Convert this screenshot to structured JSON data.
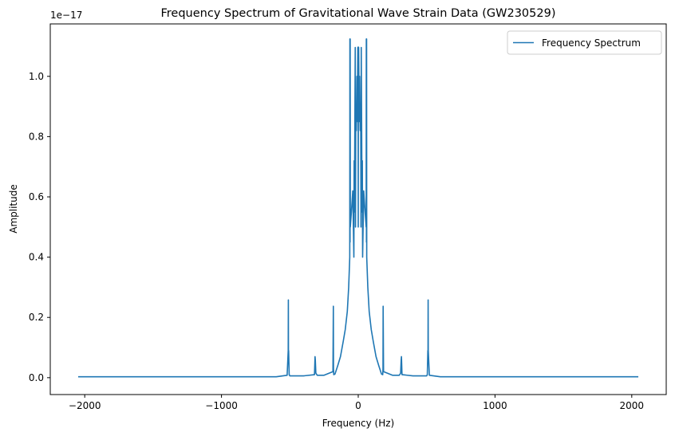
{
  "chart_data": {
    "type": "line",
    "title": "Frequency Spectrum of Gravitational Wave Strain Data (GW230529)",
    "xlabel": "Frequency (Hz)",
    "ylabel": "Amplitude",
    "y_offset_label": "1e−17",
    "xlim": [
      -2252,
      2252
    ],
    "ylim": [
      -0.056,
      1.174
    ],
    "x_ticks": [
      -2000,
      -1000,
      0,
      1000,
      2000
    ],
    "x_tick_labels": [
      "−2000",
      "−1000",
      "0",
      "1000",
      "2000"
    ],
    "y_ticks": [
      0.0,
      0.2,
      0.4,
      0.6,
      0.8,
      1.0
    ],
    "y_tick_labels": [
      "0.0",
      "0.2",
      "0.4",
      "0.6",
      "0.8",
      "1.0"
    ],
    "grid": false,
    "legend": {
      "position": "upper right",
      "entries": [
        "Frequency Spectrum"
      ]
    },
    "color": "#1f77b4",
    "series": [
      {
        "name": "Frequency Spectrum",
        "x": [
          -2048,
          -1500,
          -1000,
          -600,
          -520,
          -512,
          -511,
          -510,
          -509,
          -505,
          -500,
          -400,
          -320,
          -316,
          -314,
          -310,
          -300,
          -250,
          -185,
          -182,
          -181,
          -180,
          -179,
          -170,
          -150,
          -130,
          -110,
          -95,
          -80,
          -70,
          -62,
          -61,
          -60,
          -59,
          -58,
          -50,
          -40,
          -32,
          -30,
          -28,
          -22,
          -20,
          -18,
          -14,
          -10,
          -8,
          -6,
          -3,
          -2,
          -1,
          0,
          1,
          2,
          3,
          6,
          8,
          10,
          14,
          18,
          20,
          22,
          28,
          30,
          32,
          40,
          50,
          58,
          59,
          60,
          61,
          62,
          70,
          80,
          95,
          110,
          130,
          150,
          170,
          179,
          180,
          181,
          182,
          185,
          250,
          300,
          310,
          314,
          316,
          320,
          400,
          500,
          505,
          509,
          510,
          511,
          512,
          520,
          600,
          1000,
          1500,
          2048
        ],
        "values": [
          0.003,
          0.003,
          0.003,
          0.003,
          0.008,
          0.09,
          0.258,
          0.05,
          0.09,
          0.01,
          0.006,
          0.006,
          0.01,
          0.07,
          0.06,
          0.015,
          0.008,
          0.008,
          0.02,
          0.237,
          0.03,
          0.02,
          0.01,
          0.012,
          0.04,
          0.07,
          0.12,
          0.16,
          0.22,
          0.3,
          0.4,
          1.124,
          0.45,
          1.124,
          0.5,
          0.55,
          0.62,
          0.4,
          0.72,
          0.55,
          1.096,
          0.5,
          0.9,
          0.82,
          1.0,
          0.85,
          0.93,
          1.096,
          0.88,
          1.097,
          0.5,
          1.097,
          0.88,
          1.096,
          0.93,
          0.85,
          1.0,
          0.82,
          0.9,
          0.5,
          1.096,
          0.55,
          0.72,
          0.4,
          0.62,
          0.55,
          0.5,
          1.124,
          0.45,
          1.124,
          0.4,
          0.3,
          0.22,
          0.16,
          0.12,
          0.07,
          0.04,
          0.012,
          0.01,
          0.02,
          0.03,
          0.237,
          0.02,
          0.008,
          0.008,
          0.015,
          0.06,
          0.07,
          0.01,
          0.006,
          0.006,
          0.01,
          0.09,
          0.05,
          0.258,
          0.09,
          0.008,
          0.003,
          0.003,
          0.003,
          0.003
        ]
      }
    ]
  }
}
